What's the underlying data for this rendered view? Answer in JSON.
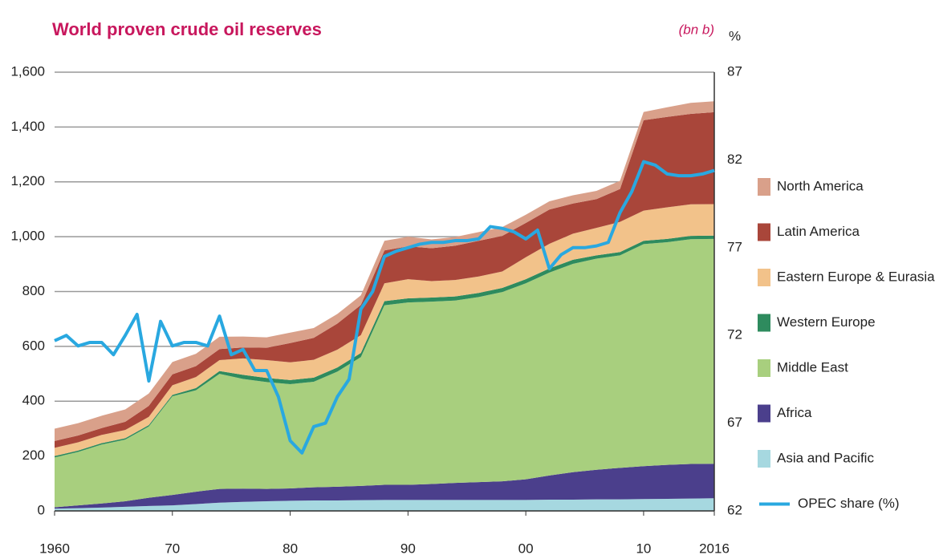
{
  "chart_data": {
    "type": "stacked_area",
    "title": "World proven crude oil reserves",
    "y_label": "(bn b)",
    "y2_label": "%",
    "x": [
      1960,
      1962,
      1964,
      1966,
      1968,
      1970,
      1972,
      1974,
      1976,
      1978,
      1980,
      1982,
      1984,
      1986,
      1988,
      1990,
      1992,
      1994,
      1996,
      1998,
      2000,
      2002,
      2004,
      2006,
      2008,
      2010,
      2012,
      2014,
      2016
    ],
    "xlim": [
      1960,
      2016
    ],
    "xticks": [
      {
        "value": 1960,
        "label": "1960"
      },
      {
        "value": 1970,
        "label": "70"
      },
      {
        "value": 1980,
        "label": "80"
      },
      {
        "value": 1990,
        "label": "90"
      },
      {
        "value": 2000,
        "label": "00"
      },
      {
        "value": 2010,
        "label": "10"
      },
      {
        "value": 2016,
        "label": "2016"
      }
    ],
    "ylim": [
      0,
      1600
    ],
    "yticks": [
      0,
      {
        "value": 200,
        "label": "200"
      },
      400,
      600,
      800,
      {
        "value": 1000,
        "label": "1,000"
      },
      {
        "value": 1200,
        "label": "1,200"
      },
      {
        "value": 1400,
        "label": "1,400"
      },
      {
        "value": 1600,
        "label": "1,600"
      }
    ],
    "y2lim": [
      62,
      87
    ],
    "y2ticks": [
      62,
      67,
      72,
      77,
      82,
      87
    ],
    "grid": true,
    "legend": "right",
    "series": [
      {
        "name": "Asia and Pacific",
        "color": "#a6d8e0",
        "values": [
          8,
          10,
          12,
          15,
          18,
          20,
          25,
          30,
          33,
          35,
          37,
          38,
          38,
          39,
          40,
          40,
          40,
          40,
          40,
          40,
          40,
          41,
          41,
          42,
          42,
          43,
          44,
          45,
          46
        ]
      },
      {
        "name": "Africa",
        "color": "#4b3f8c",
        "values": [
          5,
          10,
          15,
          20,
          30,
          38,
          45,
          50,
          48,
          45,
          45,
          48,
          50,
          52,
          55,
          55,
          58,
          62,
          65,
          68,
          75,
          88,
          100,
          108,
          115,
          120,
          124,
          126,
          126
        ]
      },
      {
        "name": "Middle East",
        "color": "#a8cf7e",
        "values": [
          182,
          195,
          215,
          225,
          260,
          360,
          370,
          420,
          400,
          390,
          380,
          385,
          420,
          470,
          655,
          665,
          665,
          665,
          675,
          690,
          715,
          740,
          760,
          770,
          775,
          810,
          812,
          820,
          820
        ]
      },
      {
        "name": "Western Europe",
        "color": "#2e8b5e",
        "values": [
          5,
          5,
          5,
          5,
          5,
          5,
          8,
          10,
          15,
          15,
          15,
          15,
          15,
          15,
          15,
          15,
          15,
          15,
          15,
          15,
          15,
          15,
          15,
          12,
          12,
          12,
          12,
          12,
          12
        ]
      },
      {
        "name": "Eastern Europe & Eurasia",
        "color": "#f2c28a",
        "values": [
          30,
          30,
          30,
          30,
          30,
          35,
          40,
          40,
          60,
          65,
          65,
          65,
          65,
          65,
          65,
          70,
          60,
          60,
          60,
          60,
          80,
          90,
          95,
          100,
          110,
          110,
          115,
          115,
          115
        ]
      },
      {
        "name": "Latin America",
        "color": "#a9463a",
        "values": [
          25,
          25,
          25,
          30,
          40,
          40,
          40,
          40,
          40,
          45,
          70,
          80,
          95,
          110,
          120,
          120,
          120,
          125,
          130,
          130,
          125,
          125,
          110,
          105,
          120,
          330,
          330,
          330,
          335
        ]
      },
      {
        "name": "North America",
        "color": "#d9a08a",
        "values": [
          45,
          45,
          45,
          45,
          45,
          45,
          45,
          45,
          40,
          38,
          38,
          36,
          35,
          35,
          35,
          35,
          32,
          32,
          32,
          32,
          30,
          30,
          30,
          30,
          30,
          30,
          35,
          40,
          40
        ]
      },
      {
        "name": "OPEC share (%)",
        "color": "#29a8e0",
        "axis": "y2",
        "x": [
          1960,
          1961,
          1962,
          1963,
          1964,
          1965,
          1966,
          1967,
          1968,
          1969,
          1970,
          1971,
          1972,
          1973,
          1974,
          1975,
          1976,
          1977,
          1978,
          1979,
          1980,
          1981,
          1982,
          1983,
          1984,
          1985,
          1986,
          1987,
          1988,
          1989,
          1990,
          1991,
          1992,
          1993,
          1994,
          1995,
          1996,
          1997,
          1998,
          1999,
          2000,
          2001,
          2002,
          2003,
          2004,
          2005,
          2006,
          2007,
          2008,
          2009,
          2010,
          2011,
          2012,
          2013,
          2014,
          2015,
          2016
        ],
        "values": [
          71.7,
          72.0,
          71.4,
          71.6,
          71.6,
          70.9,
          72.0,
          73.2,
          69.4,
          72.8,
          71.4,
          71.6,
          71.6,
          71.4,
          73.1,
          70.9,
          71.2,
          70.0,
          70.0,
          68.5,
          66.0,
          65.3,
          66.8,
          67.0,
          68.5,
          69.5,
          73.5,
          74.5,
          76.5,
          76.8,
          77.0,
          77.2,
          77.3,
          77.3,
          77.4,
          77.4,
          77.5,
          78.2,
          78.1,
          77.9,
          77.5,
          78.0,
          75.8,
          76.6,
          77.0,
          77.0,
          77.1,
          77.3,
          79.0,
          80.2,
          81.9,
          81.7,
          81.2,
          81.1,
          81.1,
          81.2,
          81.4
        ]
      }
    ]
  }
}
